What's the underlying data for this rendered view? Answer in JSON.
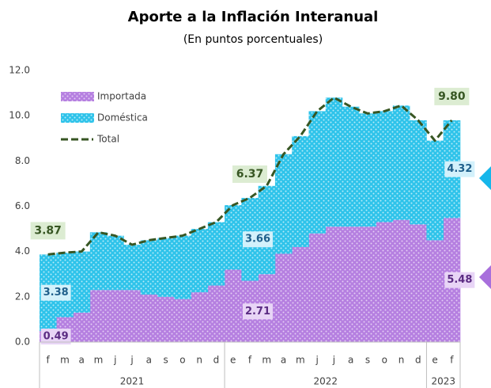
{
  "chart_data": {
    "type": "stacked_bar_line",
    "title": "Aporte a la Inflación Interanual",
    "subtitle": "(En puntos porcentuales)",
    "categories": [
      "f",
      "m",
      "a",
      "m",
      "j",
      "j",
      "a",
      "s",
      "o",
      "n",
      "d",
      "e",
      "f",
      "m",
      "a",
      "m",
      "j",
      "j",
      "a",
      "s",
      "o",
      "n",
      "d",
      "e",
      "f"
    ],
    "groups": [
      {
        "label": "2021",
        "count": 11
      },
      {
        "label": "2022",
        "count": 12
      },
      {
        "label": "2023",
        "count": 2
      }
    ],
    "ylim": [
      0,
      12
    ],
    "yticks": [
      {
        "value": 0,
        "label": "0.0"
      },
      {
        "value": 2,
        "label": "2.0"
      },
      {
        "value": 4,
        "label": "4.0"
      },
      {
        "value": 6,
        "label": "6.0"
      },
      {
        "value": 8,
        "label": "8.0"
      },
      {
        "value": 10,
        "label": "10.0"
      },
      {
        "value": 12,
        "label": "12.0"
      }
    ],
    "series": [
      {
        "name": "Importada",
        "color": "#b57fe0",
        "values": [
          0.49,
          1.1,
          1.3,
          2.3,
          2.3,
          2.3,
          2.1,
          2.0,
          1.9,
          2.2,
          2.5,
          3.2,
          2.71,
          3.0,
          3.9,
          4.2,
          4.8,
          5.1,
          5.1,
          5.1,
          5.3,
          5.4,
          5.2,
          4.5,
          5.48
        ],
        "value_labels": [
          "0.49",
          null,
          null,
          null,
          null,
          null,
          null,
          null,
          null,
          null,
          null,
          null,
          "2.71",
          null,
          null,
          null,
          null,
          null,
          null,
          null,
          null,
          null,
          null,
          null,
          "5.48"
        ]
      },
      {
        "name": "Doméstica",
        "color": "#2ec3ea",
        "values": [
          3.38,
          2.85,
          2.7,
          2.55,
          2.4,
          2.0,
          2.4,
          2.6,
          2.8,
          2.8,
          2.8,
          2.85,
          3.66,
          3.9,
          4.4,
          4.9,
          5.4,
          5.7,
          5.3,
          5.0,
          4.9,
          5.05,
          4.6,
          4.4,
          4.32
        ],
        "value_labels": [
          "3.38",
          null,
          null,
          null,
          null,
          null,
          null,
          null,
          null,
          null,
          null,
          null,
          "3.66",
          null,
          null,
          null,
          null,
          null,
          null,
          null,
          null,
          null,
          null,
          null,
          "4.32"
        ]
      },
      {
        "name": "Total",
        "color": "#375623",
        "kind": "line",
        "values": [
          3.87,
          3.95,
          4.0,
          4.85,
          4.7,
          4.3,
          4.5,
          4.6,
          4.7,
          5.0,
          5.3,
          6.05,
          6.37,
          6.9,
          8.3,
          9.1,
          10.2,
          10.8,
          10.4,
          10.1,
          10.2,
          10.45,
          9.8,
          8.9,
          9.8
        ],
        "value_labels": [
          "3.87",
          null,
          null,
          null,
          null,
          null,
          null,
          null,
          null,
          null,
          null,
          null,
          "6.37",
          null,
          null,
          null,
          null,
          null,
          null,
          null,
          null,
          null,
          null,
          null,
          "9.80"
        ]
      }
    ]
  }
}
